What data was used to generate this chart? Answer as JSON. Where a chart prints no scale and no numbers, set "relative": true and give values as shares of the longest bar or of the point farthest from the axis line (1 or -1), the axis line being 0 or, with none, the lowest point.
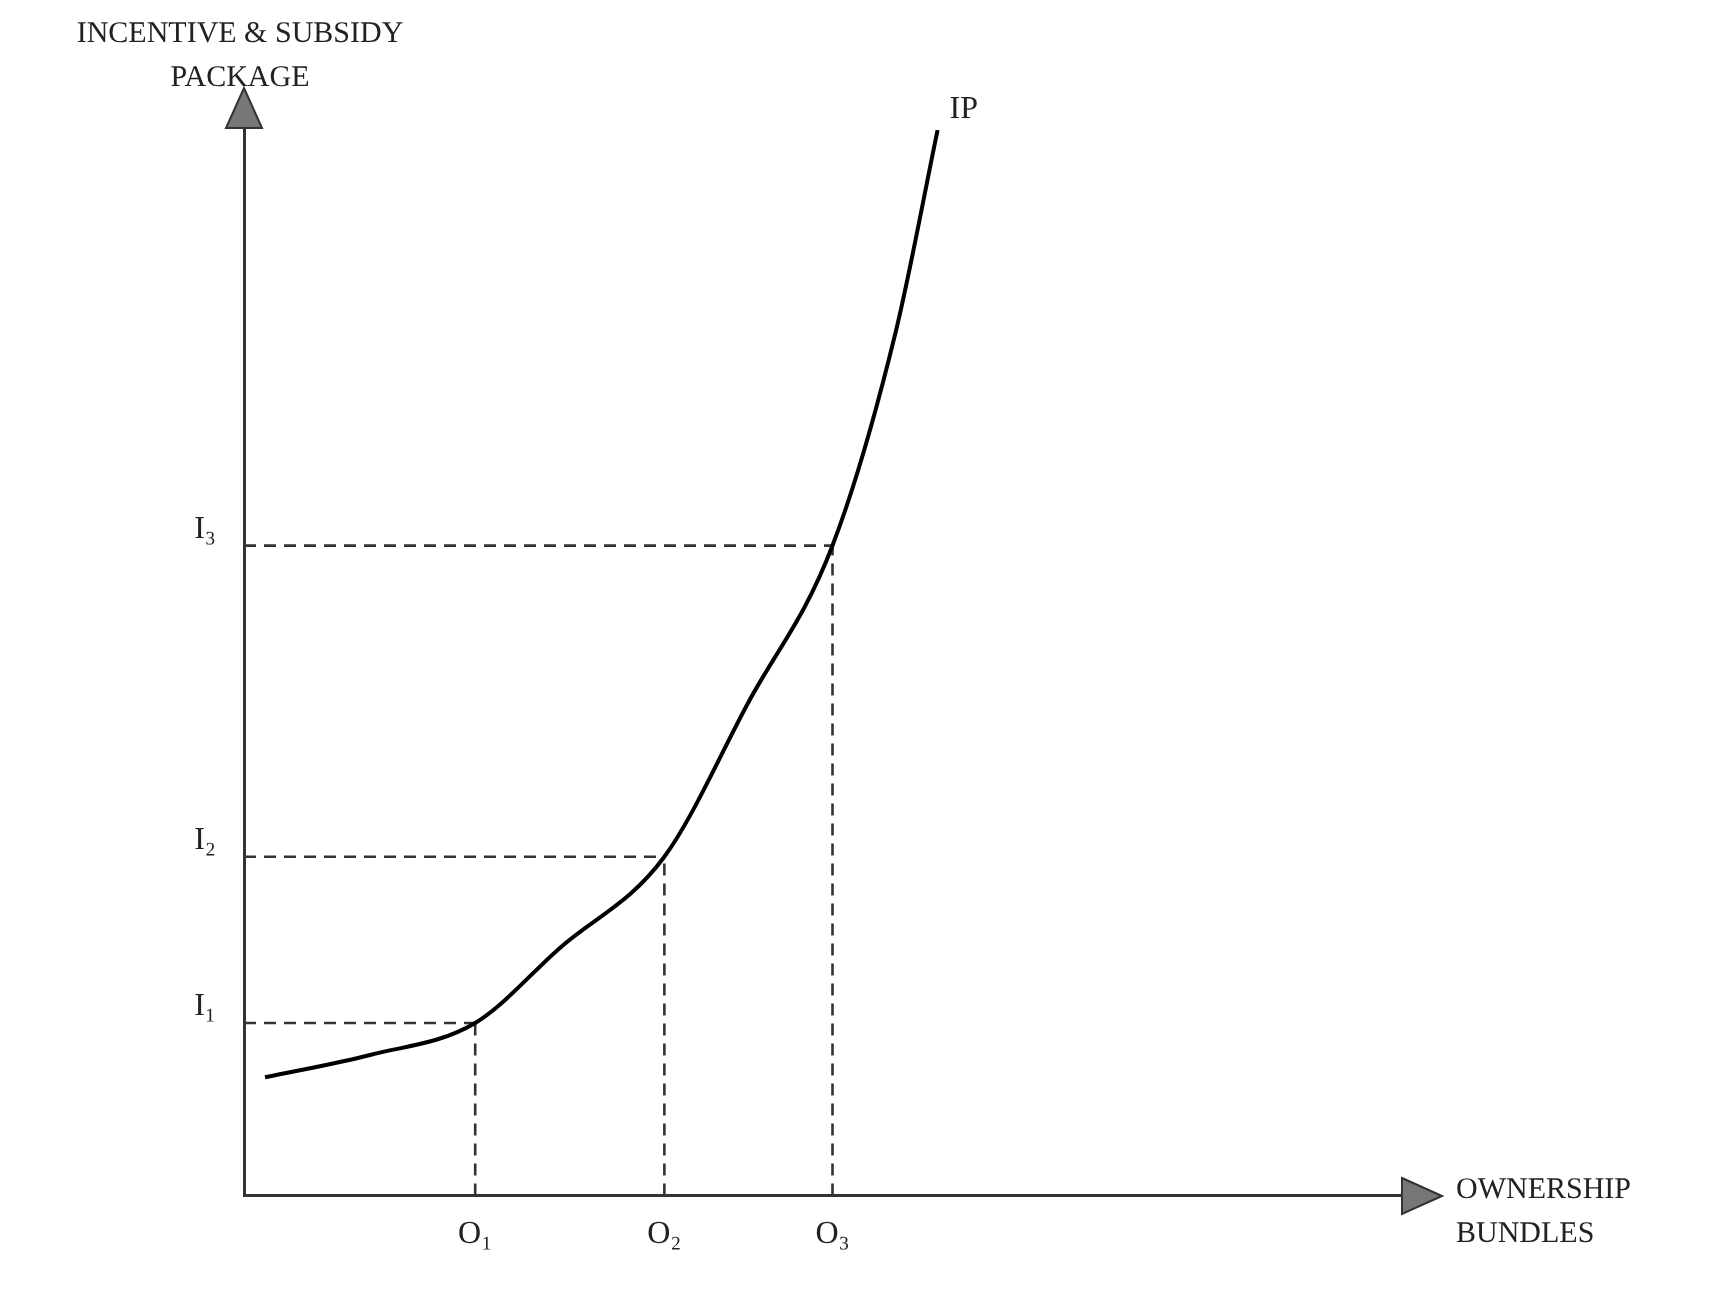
{
  "chart_data": {
    "type": "line",
    "relative": true,
    "xlabel": "OWNERSHIP BUNDLES",
    "ylabel": "INCENTIVE & SUBSIDY PACKAGE",
    "categories": [
      null,
      null,
      null,
      null,
      null,
      null,
      null,
      null,
      null,
      null,
      null,
      "O₁",
      null,
      null,
      null,
      null,
      null,
      null,
      null,
      null,
      "O₂",
      null,
      null,
      null,
      null,
      null,
      null,
      null,
      "O₃",
      null,
      null,
      null,
      null,
      null,
      null,
      null,
      null,
      null,
      null,
      null,
      null,
      null,
      null,
      null,
      null,
      null,
      null,
      null,
      null,
      null,
      null,
      null,
      null,
      null,
      null,
      null
    ],
    "grid": false,
    "legend": false,
    "marker": "none",
    "line_style": "solid",
    "annotations": [
      "IP"
    ],
    "ref_lines": [
      {
        "axis": "y",
        "value": 0.162,
        "label": "I₁",
        "line_style": "dashed",
        "color": "#333333"
      },
      {
        "axis": "y",
        "value": 0.318,
        "label": "I₂",
        "line_style": "dashed",
        "color": "#333333"
      },
      {
        "axis": "y",
        "value": 0.61,
        "label": "I₃",
        "line_style": "dashed",
        "color": "#333333"
      },
      {
        "axis": "x",
        "value": "O₁",
        "line_style": "dashed",
        "color": "#333333"
      },
      {
        "axis": "x",
        "value": "O₂",
        "line_style": "dashed",
        "color": "#333333"
      },
      {
        "axis": "x",
        "value": "O₃",
        "line_style": "dashed",
        "color": "#333333"
      }
    ],
    "series": [
      {
        "color": "#000000",
        "values": [
          null,
          0.111,
          null,
          null,
          null,
          null,
          0.132,
          null,
          null,
          null,
          null,
          0.162,
          null,
          null,
          null,
          0.232,
          null,
          null,
          null,
          null,
          0.318,
          null,
          null,
          null,
          0.463,
          null,
          null,
          null,
          0.61,
          null,
          null,
          0.81,
          null,
          1,
          null,
          null,
          null,
          null,
          null,
          null,
          null,
          null,
          null,
          null,
          null,
          null,
          null,
          null,
          null,
          null,
          null,
          null,
          null,
          null,
          null,
          null
        ]
      }
    ]
  }
}
